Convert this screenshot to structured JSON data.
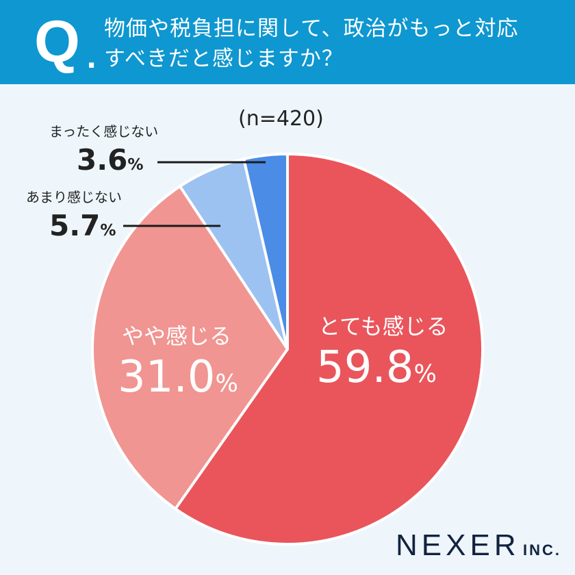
{
  "header": {
    "q_mark": "Q",
    "q_dot": ".",
    "title_line1": "物価や税負担に関して、政治がもっと対応",
    "title_line2": "すべきだと感じますか？"
  },
  "chart_data": {
    "type": "pie",
    "sample": "(n=420)",
    "slices": [
      {
        "label": "とても感じる",
        "value": 59.8,
        "display": "59.8",
        "color": "#E9555B"
      },
      {
        "label": "やや感じる",
        "value": 31.0,
        "display": "31.0",
        "color": "#F09591"
      },
      {
        "label": "あまり感じない",
        "value": 5.7,
        "display": "5.7",
        "color": "#9CC2F1"
      },
      {
        "label": "まったく感じない",
        "value": 3.6,
        "display": "3.6",
        "color": "#4A8CE6"
      }
    ],
    "unit": "%",
    "start": "top",
    "direction": "clockwise"
  },
  "logo": {
    "name": "NEXER",
    "suffix": "INC."
  }
}
